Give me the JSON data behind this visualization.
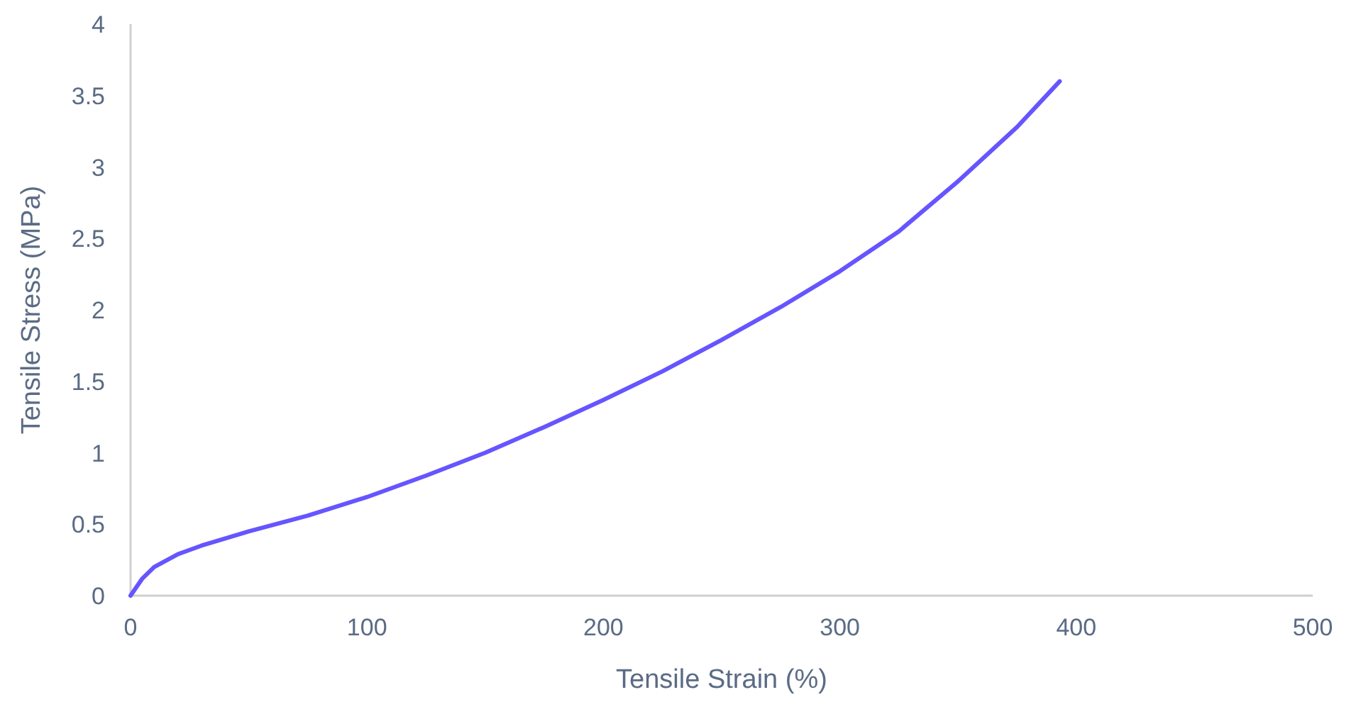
{
  "chart_data": {
    "type": "line",
    "xlabel": "Tensile Strain (%)",
    "ylabel": "Tensile Stress (MPa)",
    "xlim": [
      0,
      500
    ],
    "xticks": [
      0,
      100,
      200,
      300,
      400,
      500
    ],
    "ylim": [
      0,
      4
    ],
    "yticks": [
      0,
      0.5,
      1,
      1.5,
      2,
      2.5,
      3,
      3.5,
      4
    ],
    "grid": false,
    "marker": "none",
    "line_style": "solid",
    "series": [
      {
        "color": "#6655ff",
        "x": [
          0,
          5,
          10,
          20,
          30,
          50,
          75,
          100,
          125,
          150,
          175,
          200,
          225,
          250,
          275,
          300,
          325,
          350,
          375,
          393
        ],
        "values": [
          0,
          0.12,
          0.2,
          0.29,
          0.35,
          0.45,
          0.56,
          0.69,
          0.84,
          1.0,
          1.18,
          1.37,
          1.57,
          1.79,
          2.02,
          2.27,
          2.55,
          2.9,
          3.28,
          3.6
        ]
      }
    ]
  }
}
